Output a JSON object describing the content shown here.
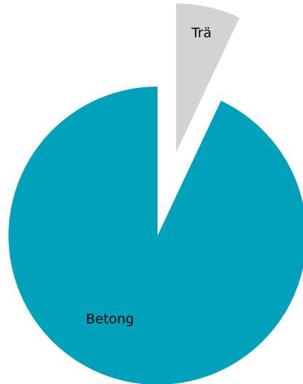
{
  "chart_data": {
    "type": "pie",
    "categories": [
      "Trä",
      "Betong"
    ],
    "values": [
      7,
      93
    ],
    "colors": [
      "#d3d3d3",
      "#00a2bb"
    ],
    "explode": [
      true,
      false
    ]
  }
}
